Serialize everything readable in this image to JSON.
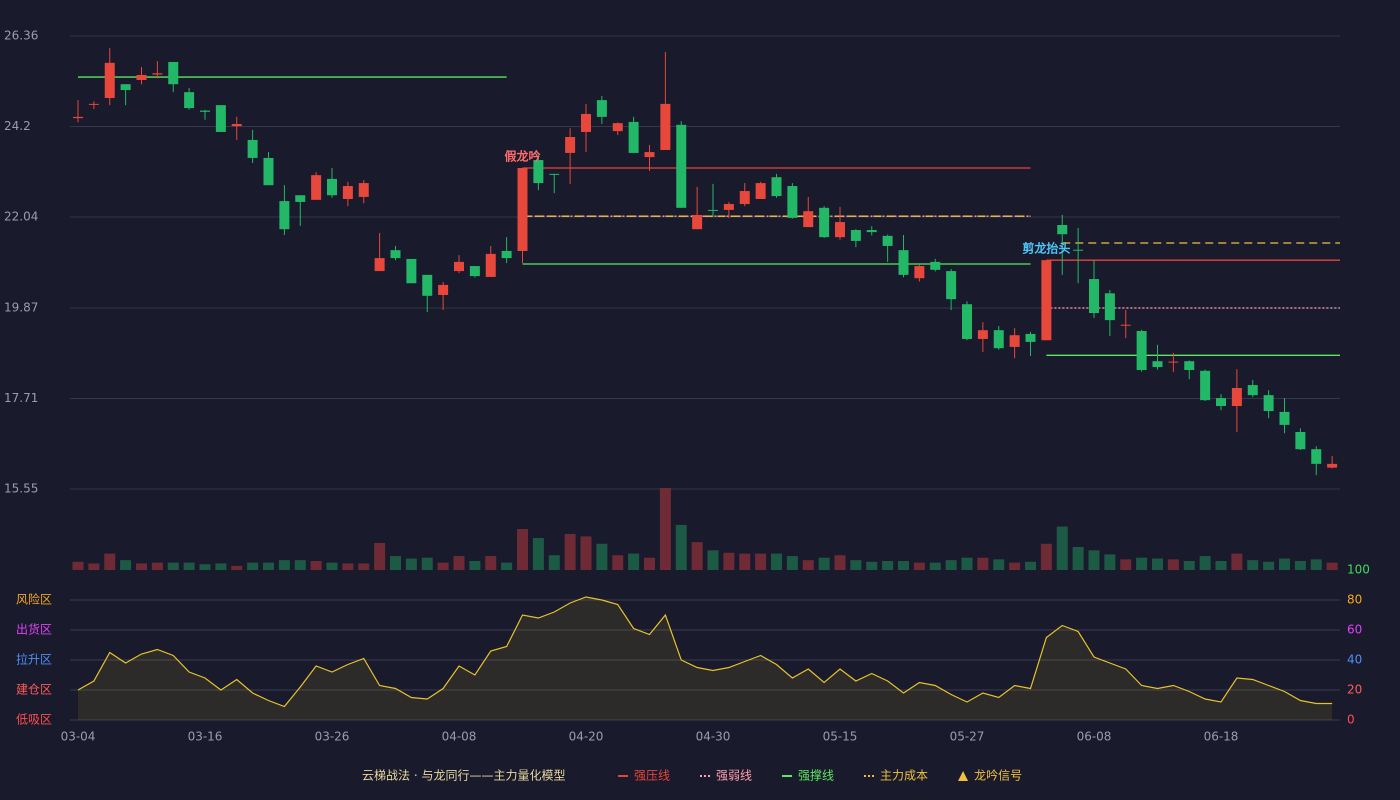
{
  "chart_data": [
    {
      "type": "candlestick",
      "categories": [
        "03-04",
        null,
        null,
        null,
        null,
        null,
        null,
        null,
        "03-16",
        null,
        null,
        null,
        null,
        null,
        null,
        null,
        "03-26",
        null,
        null,
        null,
        null,
        null,
        null,
        null,
        "04-08",
        null,
        null,
        null,
        null,
        null,
        null,
        null,
        "04-20",
        null,
        null,
        null,
        null,
        null,
        null,
        null,
        "04-30",
        null,
        null,
        null,
        null,
        null,
        null,
        null,
        "05-15",
        null,
        null,
        null,
        null,
        null,
        null,
        null,
        "05-27",
        null,
        null,
        null,
        null,
        null,
        null,
        null,
        "06-08",
        null,
        null,
        null,
        null,
        null,
        null,
        null,
        "06-18",
        null,
        null,
        null,
        null,
        null,
        null,
        null
      ],
      "open": [
        24.4,
        24.72,
        24.88,
        25.21,
        25.31,
        25.44,
        25.74,
        25.02,
        24.58,
        24.71,
        24.21,
        23.88,
        23.45,
        22.42,
        22.56,
        22.45,
        22.95,
        22.47,
        22.52,
        20.75,
        21.25,
        21.04,
        20.66,
        20.18,
        20.75,
        20.87,
        20.61,
        21.23,
        21.23,
        23.4,
        23.07,
        23.57,
        24.07,
        24.83,
        24.09,
        24.31,
        23.47,
        23.64,
        24.24,
        21.75,
        22.21,
        22.21,
        22.35,
        22.47,
        22.99,
        22.78,
        21.8,
        22.26,
        21.56,
        21.73,
        21.73,
        21.59,
        21.25,
        20.58,
        20.97,
        20.75,
        19.96,
        19.13,
        19.34,
        18.94,
        19.25,
        19.1,
        21.85,
        21.26,
        20.56,
        20.22,
        19.45,
        19.32,
        18.6,
        18.57,
        18.6,
        18.37,
        17.72,
        17.53,
        18.03,
        17.79,
        17.39,
        16.91,
        16.5,
        16.06
      ],
      "high": [
        24.83,
        24.8,
        26.07,
        25.21,
        25.62,
        25.76,
        25.74,
        25.12,
        24.6,
        24.71,
        24.43,
        24.12,
        23.59,
        22.8,
        22.56,
        23.11,
        23.21,
        22.88,
        22.92,
        21.66,
        21.35,
        21.04,
        20.66,
        20.49,
        21.13,
        20.87,
        21.35,
        21.56,
        23.21,
        23.52,
        23.07,
        24.16,
        24.74,
        24.93,
        24.3,
        24.43,
        23.76,
        25.98,
        24.33,
        22.76,
        22.83,
        22.4,
        22.85,
        22.88,
        23.07,
        22.85,
        22.52,
        22.3,
        22.28,
        21.75,
        21.82,
        21.62,
        21.61,
        20.9,
        21.04,
        20.8,
        20.03,
        19.53,
        19.44,
        19.39,
        19.3,
        21.01,
        22.09,
        21.78,
        21.01,
        20.3,
        19.82,
        19.35,
        18.99,
        18.8,
        18.62,
        18.4,
        17.81,
        18.41,
        18.15,
        17.91,
        17.72,
        17.0,
        16.57,
        16.34
      ],
      "low": [
        24.3,
        24.62,
        24.71,
        24.71,
        25.21,
        25.35,
        25.02,
        24.6,
        24.36,
        24.07,
        23.88,
        23.33,
        22.8,
        21.61,
        21.83,
        22.45,
        22.5,
        22.3,
        22.37,
        20.75,
        21.01,
        20.46,
        19.77,
        19.82,
        20.7,
        20.6,
        20.61,
        20.94,
        20.94,
        22.68,
        22.61,
        22.83,
        23.59,
        24.26,
        24.0,
        23.57,
        23.14,
        23.64,
        22.26,
        21.75,
        22.04,
        22.02,
        22.3,
        22.47,
        22.5,
        22.0,
        21.8,
        21.54,
        21.5,
        21.32,
        21.6,
        20.97,
        20.6,
        20.5,
        20.74,
        19.82,
        19.1,
        18.82,
        18.87,
        18.67,
        18.72,
        19.1,
        20.66,
        20.46,
        19.63,
        19.2,
        19.15,
        18.35,
        18.4,
        18.34,
        18.17,
        17.65,
        17.43,
        16.91,
        17.74,
        17.24,
        16.88,
        16.48,
        15.88,
        16.04
      ],
      "close": [
        24.43,
        24.74,
        25.72,
        25.07,
        25.43,
        25.47,
        25.21,
        24.64,
        24.55,
        24.07,
        24.26,
        23.45,
        22.8,
        21.75,
        22.4,
        23.04,
        22.56,
        22.78,
        22.85,
        21.06,
        21.06,
        20.46,
        20.16,
        20.42,
        20.97,
        20.63,
        21.16,
        21.06,
        23.21,
        22.85,
        23.05,
        23.95,
        24.5,
        24.43,
        24.28,
        23.57,
        23.59,
        24.74,
        22.26,
        22.09,
        22.19,
        22.35,
        22.66,
        22.85,
        22.54,
        22.02,
        22.18,
        21.56,
        21.92,
        21.47,
        21.68,
        21.35,
        20.66,
        20.87,
        20.78,
        20.08,
        19.13,
        19.34,
        18.91,
        19.22,
        19.06,
        21.01,
        21.63,
        21.25,
        19.75,
        19.58,
        19.47,
        18.39,
        18.46,
        18.59,
        18.39,
        17.67,
        17.53,
        17.96,
        17.79,
        17.41,
        17.08,
        16.5,
        16.15,
        16.15
      ],
      "up_color": "#e8473b",
      "down_color": "#22b868",
      "ylim": [
        15.55,
        26.36
      ],
      "yticks": [
        15.55,
        17.71,
        19.87,
        22.04,
        24.2,
        26.36
      ],
      "grid": true,
      "levels": [
        {
          "name": "强压线",
          "color": "#e8443a",
          "dash": "",
          "segments": [
            {
              "value": 23.21,
              "start": 28,
              "end": 60
            },
            {
              "value": 21.01,
              "start": 61,
              "end": 79
            }
          ]
        },
        {
          "name": "强弱线",
          "color": "#ff9fb0",
          "dash": "2,2",
          "segments": [
            {
              "value": 22.06,
              "start": 28,
              "end": 60
            },
            {
              "value": 19.87,
              "start": 61,
              "end": 79
            }
          ]
        },
        {
          "name": "强撑线",
          "color": "#5fe65f",
          "dash": "",
          "segments": [
            {
              "value": 25.38,
              "start": 0,
              "end": 27
            },
            {
              "value": 20.92,
              "start": 28,
              "end": 60
            },
            {
              "value": 18.74,
              "start": 61,
              "end": 79
            }
          ]
        },
        {
          "name": "主力成本",
          "color": "#f0c040",
          "dash": "8,5",
          "segments": [
            {
              "value": 22.06,
              "start": 28,
              "end": 60
            },
            {
              "value": 21.42,
              "start": 62,
              "end": 79
            }
          ]
        }
      ],
      "signals": {
        "name": "龙吟信号",
        "color": "#f0c040",
        "points": [
          {
            "index": 28,
            "label": "假龙吟",
            "color": "#ff6b6b"
          },
          {
            "index": 61,
            "label": "剪龙抬头",
            "color": "#4fc3f7"
          }
        ]
      },
      "legend_title": "云梯战法 · 与龙同行——主力量化模型"
    },
    {
      "type": "bar",
      "values": [
        10,
        8,
        20,
        12,
        8,
        9,
        9,
        9,
        7,
        8,
        5,
        9,
        9,
        12,
        12,
        11,
        9,
        8,
        8,
        33,
        17,
        14,
        15,
        9,
        17,
        11,
        17,
        9,
        50,
        39,
        18,
        44,
        41,
        32,
        18,
        20,
        15,
        100,
        55,
        34,
        24,
        21,
        20,
        20,
        20,
        17,
        12,
        15,
        18,
        12,
        10,
        11,
        11,
        9,
        9,
        12,
        15,
        15,
        13,
        9,
        10,
        32,
        53,
        28,
        24,
        19,
        13,
        15,
        14,
        13,
        11,
        17,
        11,
        20,
        12,
        10,
        14,
        11,
        13,
        9
      ],
      "up_color": "#6e2b35",
      "down_color": "#1d5a45",
      "ylim": [
        0,
        100
      ]
    },
    {
      "type": "area",
      "values": [
        20,
        26,
        45,
        38,
        44,
        47,
        43,
        32,
        28,
        20,
        27,
        18,
        13,
        9,
        22,
        36,
        32,
        37,
        41,
        23,
        21,
        15,
        14,
        21,
        36,
        30,
        46,
        49,
        70,
        68,
        72,
        78,
        82,
        80,
        77,
        61,
        57,
        70,
        40,
        35,
        33,
        35,
        39,
        43,
        37,
        28,
        34,
        25,
        34,
        26,
        31,
        26,
        18,
        25,
        23,
        17,
        12,
        18,
        15,
        23,
        21,
        55,
        63,
        59,
        42,
        38,
        34,
        23,
        21,
        23,
        19,
        14,
        12,
        28,
        27,
        23,
        19,
        13,
        11,
        11
      ],
      "color": "#e6c229",
      "fill": "rgba(230,194,41,0.10)",
      "ylim": [
        0,
        100
      ],
      "yticks": [
        0,
        20,
        40,
        60,
        80,
        100
      ],
      "ytick_colors": [
        "#ff4d4d",
        "#ff5a5a",
        "#4f8ef7",
        "#e040fb",
        "#f5a623",
        "#3ddc5a"
      ],
      "zones": [
        {
          "label": "低吸区",
          "value": 0,
          "color": "#ff4d4d"
        },
        {
          "label": "建仓区",
          "value": 20,
          "color": "#ff5a5a"
        },
        {
          "label": "拉升区",
          "value": 40,
          "color": "#4f8ef7"
        },
        {
          "label": "出货区",
          "value": 60,
          "color": "#e040fb"
        },
        {
          "label": "风险区",
          "value": 80,
          "color": "#f5a623"
        }
      ]
    }
  ]
}
